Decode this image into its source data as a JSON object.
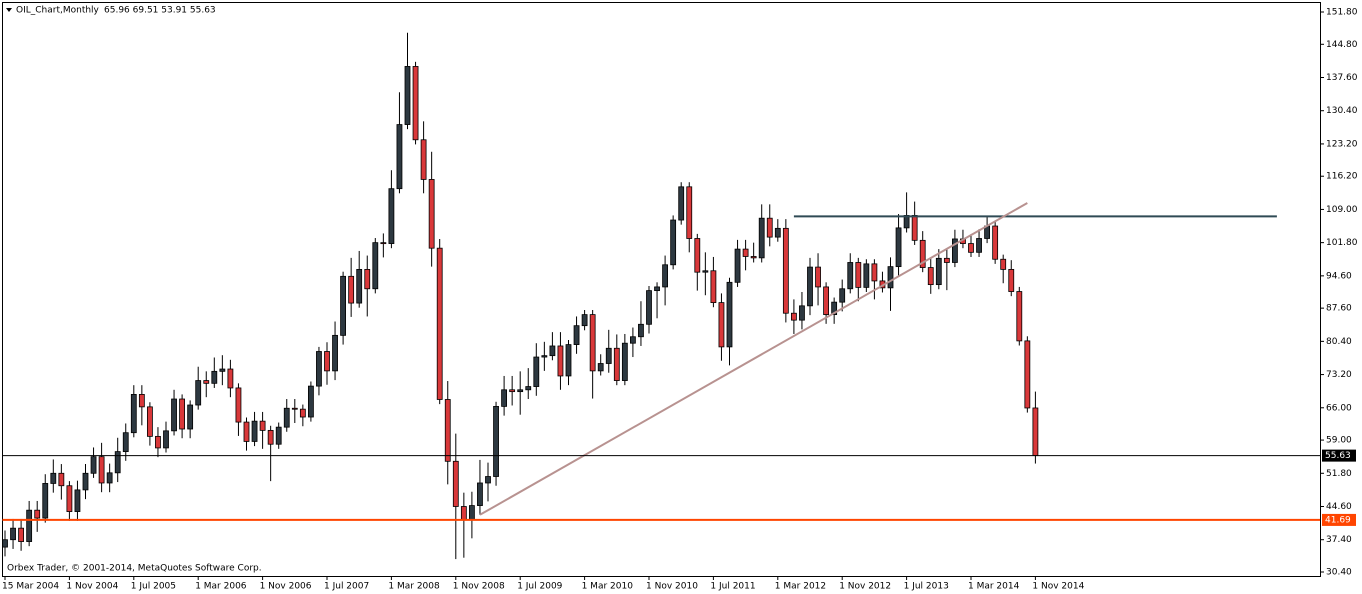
{
  "chart_data": {
    "type": "candlestick",
    "title": "OIL_Chart,Monthly",
    "quote": "65.96 69.51 53.91 55.63",
    "copyright": "Orbex Trader, © 2001-2014, MetaQuotes Software Corp.",
    "categories": [
      "15 Mar 2004",
      null,
      null,
      null,
      null,
      null,
      null,
      null,
      "1 Nov 2004",
      null,
      null,
      null,
      null,
      null,
      null,
      null,
      "1 Jul 2005",
      null,
      null,
      null,
      null,
      null,
      null,
      null,
      "1 Mar 2006",
      null,
      null,
      null,
      null,
      null,
      null,
      null,
      "1 Nov 2006",
      null,
      null,
      null,
      null,
      null,
      null,
      null,
      "1 Jul 2007",
      null,
      null,
      null,
      null,
      null,
      null,
      null,
      "1 Mar 2008",
      null,
      null,
      null,
      null,
      null,
      null,
      null,
      "1 Nov 2008",
      null,
      null,
      null,
      null,
      null,
      null,
      null,
      "1 Jul 2009",
      null,
      null,
      null,
      null,
      null,
      null,
      null,
      "1 Mar 2010",
      null,
      null,
      null,
      null,
      null,
      null,
      null,
      "1 Nov 2010",
      null,
      null,
      null,
      null,
      null,
      null,
      null,
      "1 Jul 2011",
      null,
      null,
      null,
      null,
      null,
      null,
      null,
      "1 Mar 2012",
      null,
      null,
      null,
      null,
      null,
      null,
      null,
      "1 Nov 2012",
      null,
      null,
      null,
      null,
      null,
      null,
      null,
      "1 Jul 2013",
      null,
      null,
      null,
      null,
      null,
      null,
      null,
      "1 Mar 2014",
      null,
      null,
      null,
      null,
      null,
      null,
      null,
      "1 Nov 2014"
    ],
    "series": [
      {
        "up_color": "#2d3840",
        "down_color": "#d9383a",
        "open": [
          35.8,
          37.4,
          39.9,
          37.0,
          43.8,
          42.1,
          49.6,
          51.8,
          49.1,
          43.5,
          48.2,
          51.8,
          55.4,
          49.7,
          51.9,
          56.5,
          60.6,
          68.9,
          66.2,
          59.8,
          57.3,
          61.0,
          67.9,
          61.4,
          66.6,
          71.9,
          71.3,
          73.9,
          74.4,
          70.3,
          62.9,
          58.7,
          63.1,
          61.1,
          58.1,
          61.8,
          65.9,
          65.7,
          64.0,
          70.7,
          78.2,
          74.0,
          81.7,
          94.5,
          88.7,
          96.0,
          91.8,
          101.8,
          101.6,
          113.5,
          127.4,
          140.0,
          124.1,
          115.5,
          100.6,
          67.8,
          54.4,
          44.6,
          41.7,
          44.8,
          49.7,
          51.1,
          66.3,
          69.9,
          69.5,
          69.9,
          70.6,
          77.0,
          77.3,
          79.4,
          72.9,
          79.7,
          83.8,
          86.2,
          74.0,
          75.6,
          78.9,
          71.9,
          80.0,
          81.4,
          84.1,
          91.4,
          92.2,
          97.0,
          106.7,
          113.9,
          102.7,
          95.4,
          95.7,
          88.8,
          79.2,
          93.2,
          100.4,
          98.8,
          98.5,
          107.1,
          103.0,
          104.9,
          86.5,
          85.0,
          88.1,
          96.5,
          92.2,
          86.2,
          88.9,
          91.8,
          97.5,
          92.1,
          97.2,
          93.5,
          92.0,
          96.6,
          105.0,
          107.7,
          102.3,
          96.4,
          92.7,
          98.4,
          97.5,
          102.6,
          101.6,
          99.7,
          102.7,
          105.4,
          98.2,
          96.0,
          91.2,
          80.5,
          65.96
        ],
        "high": [
          39.4,
          41.9,
          41.9,
          45.8,
          45.8,
          51.6,
          54.8,
          53.8,
          50.1,
          50.2,
          53.8,
          57.4,
          58.4,
          53.9,
          59.5,
          62.6,
          70.9,
          70.9,
          67.2,
          61.8,
          63.0,
          69.9,
          68.9,
          67.6,
          74.9,
          73.9,
          76.9,
          77.4,
          76.4,
          71.3,
          63.9,
          65.1,
          65.1,
          62.1,
          62.8,
          67.9,
          67.9,
          66.7,
          71.7,
          79.2,
          80.2,
          84.7,
          95.5,
          98.5,
          100.0,
          99.0,
          102.8,
          103.8,
          117.5,
          134.4,
          147.3,
          141.0,
          128.1,
          121.5,
          102.6,
          71.8,
          60.4,
          47.6,
          47.8,
          54.7,
          54.1,
          67.3,
          72.9,
          72.9,
          73.9,
          74.6,
          80.0,
          80.3,
          82.4,
          82.4,
          80.7,
          85.8,
          87.2,
          87.2,
          77.6,
          82.9,
          81.9,
          82.0,
          83.4,
          89.1,
          92.4,
          93.2,
          99.0,
          107.7,
          114.9,
          114.9,
          103.7,
          99.7,
          98.7,
          90.8,
          94.2,
          102.4,
          102.4,
          101.8,
          110.1,
          110.1,
          106.9,
          106.9,
          89.5,
          91.1,
          98.5,
          99.5,
          93.2,
          89.9,
          93.8,
          99.5,
          98.5,
          98.2,
          98.2,
          95.5,
          98.6,
          108.0,
          112.7,
          110.7,
          104.3,
          98.4,
          100.4,
          100.4,
          104.6,
          104.6,
          103.6,
          104.7,
          107.4,
          106.4,
          99.2,
          98.0,
          92.2,
          81.5,
          69.51
        ],
        "low": [
          33.8,
          35.4,
          35.0,
          36.0,
          39.1,
          41.1,
          47.6,
          46.1,
          41.5,
          41.5,
          46.2,
          50.8,
          47.7,
          47.7,
          49.9,
          54.5,
          59.6,
          62.2,
          57.8,
          55.3,
          56.3,
          60.0,
          59.4,
          59.4,
          65.6,
          68.3,
          70.3,
          70.9,
          68.3,
          59.9,
          56.7,
          57.7,
          57.1,
          50.1,
          57.1,
          60.8,
          62.7,
          62.0,
          63.0,
          68.7,
          71.0,
          72.0,
          79.7,
          85.7,
          87.7,
          85.8,
          90.8,
          98.6,
          100.6,
          112.5,
          126.4,
          123.1,
          112.5,
          96.6,
          66.8,
          49.4,
          33.2,
          33.5,
          37.7,
          42.8,
          45.7,
          49.1,
          64.3,
          66.5,
          64.5,
          67.9,
          68.6,
          74.0,
          76.3,
          69.9,
          70.9,
          77.7,
          82.8,
          68.0,
          73.0,
          73.6,
          70.9,
          70.9,
          77.0,
          79.4,
          82.1,
          85.4,
          88.2,
          96.0,
          105.7,
          99.7,
          91.4,
          90.4,
          87.8,
          76.2,
          75.2,
          92.2,
          95.8,
          97.5,
          97.5,
          101.0,
          102.0,
          84.5,
          82.0,
          83.0,
          86.1,
          88.2,
          84.2,
          84.2,
          86.9,
          90.8,
          89.1,
          91.1,
          89.5,
          91.0,
          87.0,
          94.6,
          104.0,
          101.3,
          95.4,
          90.7,
          91.7,
          91.5,
          96.5,
          100.6,
          98.7,
          98.7,
          101.7,
          97.2,
          93.0,
          90.2,
          79.5,
          64.96,
          53.91
        ],
        "close": [
          37.4,
          39.9,
          37.0,
          43.8,
          42.1,
          49.6,
          51.8,
          49.1,
          43.5,
          48.2,
          51.8,
          55.4,
          49.7,
          51.9,
          56.5,
          60.6,
          68.9,
          66.2,
          59.8,
          57.3,
          61.0,
          67.9,
          61.4,
          66.6,
          71.9,
          71.3,
          73.9,
          74.4,
          70.3,
          62.9,
          58.7,
          63.1,
          61.1,
          58.1,
          61.8,
          65.9,
          65.7,
          64.0,
          70.7,
          78.2,
          74.0,
          81.7,
          94.5,
          88.7,
          96.0,
          91.8,
          101.8,
          101.6,
          113.5,
          127.4,
          140.0,
          124.1,
          115.5,
          100.6,
          67.8,
          54.4,
          44.6,
          41.7,
          44.8,
          49.7,
          51.1,
          66.3,
          69.9,
          69.5,
          69.9,
          70.6,
          77.0,
          77.3,
          79.4,
          72.9,
          79.7,
          83.8,
          86.2,
          74.0,
          75.6,
          78.9,
          71.9,
          80.0,
          81.4,
          84.1,
          91.4,
          92.2,
          97.0,
          106.7,
          113.9,
          102.7,
          95.4,
          95.7,
          88.8,
          79.2,
          93.2,
          100.4,
          98.8,
          98.5,
          107.1,
          103.0,
          104.9,
          86.5,
          85.0,
          88.1,
          96.5,
          92.2,
          86.2,
          88.9,
          91.8,
          97.5,
          92.1,
          97.2,
          93.5,
          92.0,
          96.6,
          105.0,
          107.7,
          102.3,
          96.4,
          92.7,
          98.4,
          97.5,
          102.6,
          101.6,
          99.7,
          102.7,
          105.4,
          98.2,
          96.0,
          91.2,
          80.5,
          65.96,
          55.63
        ]
      }
    ],
    "ylim": [
      30.4,
      151.8
    ],
    "yticks": [
      {
        "value": 30.4,
        "label": "30.40"
      },
      {
        "value": 37.4,
        "label": "37.40"
      },
      {
        "value": 44.6,
        "label": "44.60"
      },
      {
        "value": 51.8,
        "label": "51.80"
      },
      {
        "value": 59.0,
        "label": "59.00"
      },
      {
        "value": 66.0,
        "label": "66.00"
      },
      {
        "value": 73.2,
        "label": "73.20"
      },
      {
        "value": 80.4,
        "label": "80.40"
      },
      {
        "value": 87.6,
        "label": "87.60"
      },
      {
        "value": 94.6,
        "label": "94.60"
      },
      {
        "value": 101.8,
        "label": "101.80"
      },
      {
        "value": 109.0,
        "label": "109.00"
      },
      {
        "value": 116.2,
        "label": "116.20"
      },
      {
        "value": 123.2,
        "label": "123.20"
      },
      {
        "value": 130.4,
        "label": "130.40"
      },
      {
        "value": 137.6,
        "label": "137.60"
      },
      {
        "value": 144.8,
        "label": "144.80"
      },
      {
        "value": 151.8,
        "label": "151.80"
      }
    ],
    "levels": [
      {
        "value": 55.63,
        "color": "#000000"
      },
      {
        "value": 41.69,
        "color": "#ff4500"
      }
    ],
    "lines": [
      {
        "color": "#2f4a55",
        "x": [
          98,
          158
        ],
        "y": [
          107.5,
          107.5
        ]
      },
      {
        "color": "#b89290",
        "x": [
          59,
          127
        ],
        "y": [
          42.8,
          110.4
        ]
      }
    ]
  }
}
